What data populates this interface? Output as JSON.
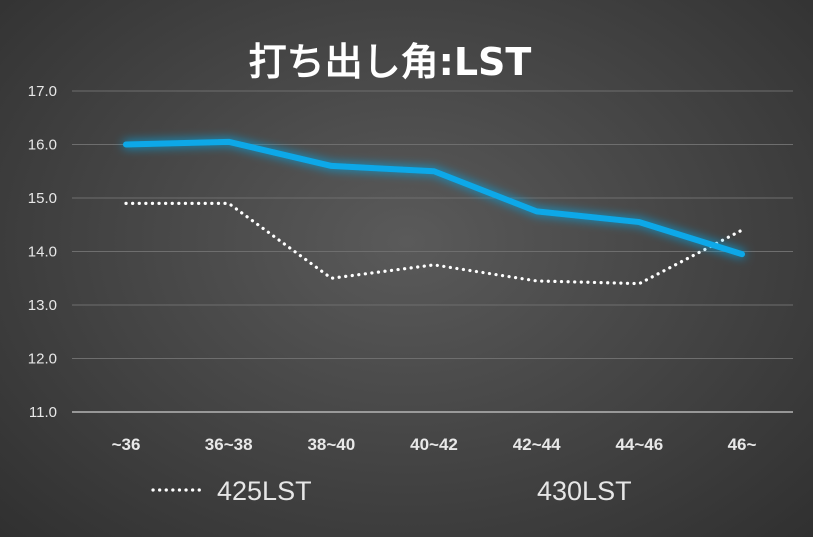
{
  "chart_data": {
    "type": "line",
    "title": "打ち出し角:LST",
    "xlabel": "",
    "ylabel": "",
    "categories": [
      "~36",
      "36~38",
      "38~40",
      "40~42",
      "42~44",
      "44~46",
      "46~"
    ],
    "ylim": [
      11.0,
      17.0
    ],
    "yticks": [
      "11.0",
      "12.0",
      "13.0",
      "14.0",
      "15.0",
      "16.0",
      "17.0"
    ],
    "grid": true,
    "legend_position": "bottom",
    "series": [
      {
        "name": "425LST",
        "values": [
          14.9,
          14.9,
          13.5,
          13.75,
          13.45,
          13.4,
          14.4
        ],
        "color": "#ffffff",
        "style": "dotted"
      },
      {
        "name": "430LST",
        "values": [
          16.0,
          16.05,
          15.6,
          15.5,
          14.75,
          14.55,
          13.95
        ],
        "color": "#0aa8e8",
        "style": "solid-glow"
      }
    ],
    "background_color": "#474747",
    "gridline_color": "#6e6e6e"
  }
}
